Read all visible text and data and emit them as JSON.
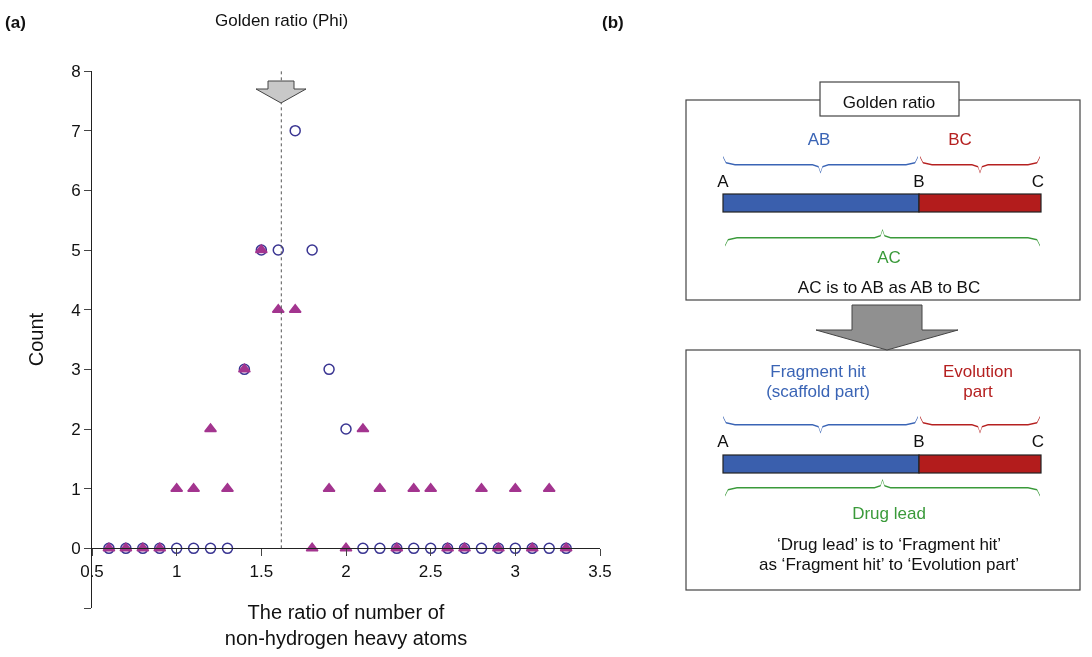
{
  "chart_data": [
    {
      "type": "scatter",
      "title": "(a)",
      "xlabel": "The ratio of number of\nnon-hydrogen heavy atoms",
      "ylabel": "Count",
      "x": [
        0.6,
        0.7,
        0.8,
        0.9,
        1.0,
        1.1,
        1.2,
        1.3,
        1.4,
        1.5,
        1.6,
        1.7,
        1.8,
        1.9,
        2.0,
        2.1,
        2.2,
        2.3,
        2.4,
        2.5,
        2.6,
        2.7,
        2.8,
        2.9,
        3.0,
        3.1,
        3.2,
        3.3
      ],
      "series": [
        {
          "color": "#3a3592",
          "marker": "circle",
          "values": [
            0,
            0,
            0,
            0,
            0,
            0,
            0,
            0,
            3,
            5,
            5,
            7,
            5,
            3,
            2,
            0,
            0,
            0,
            0,
            0,
            0,
            0,
            0,
            0,
            0,
            0,
            0,
            0
          ]
        },
        {
          "color": "#a3358f",
          "marker": "triangle",
          "values": [
            0,
            0,
            0,
            0,
            1,
            1,
            2,
            1,
            3,
            5,
            4,
            4,
            0,
            1,
            0,
            2,
            1,
            0,
            1,
            1,
            0,
            0,
            1,
            0,
            1,
            0,
            1,
            0
          ]
        }
      ],
      "xlim": [
        0.5,
        3.5
      ],
      "xticks": [
        0.5,
        1,
        1.5,
        2,
        2.5,
        3,
        3.5
      ],
      "ylim": [
        -1,
        8
      ],
      "yticks": [
        {
          "value": -1,
          "label": null
        },
        0,
        1,
        2,
        3,
        4,
        5,
        6,
        7,
        8
      ],
      "ref_lines": [
        {
          "axis": "x",
          "value": 1.618,
          "label": "Golden ratio (Phi)",
          "line_style": "dotted",
          "color": "#555555"
        }
      ],
      "grid": false
    },
    {
      "type": "other",
      "title": "(b)",
      "annotations": [
        "Golden ratio",
        "AB",
        "BC",
        "A",
        "B",
        "C",
        "AC",
        "AC is to AB as AB to BC",
        "Fragment hit\n(scaffold part)",
        "Evolution\npart",
        "A",
        "B",
        "C",
        "Drug lead",
        "‘Drug lead’ is to ‘Fragment hit’\nas ‘Fragment hit’ to ‘Evolution part’"
      ]
    }
  ]
}
